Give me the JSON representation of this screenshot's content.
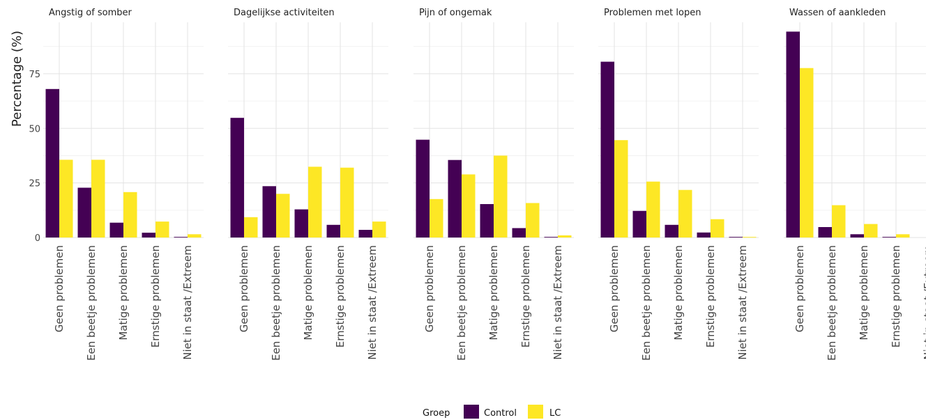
{
  "chart_data": {
    "type": "bar",
    "ylabel": "Percentage (%)",
    "ylim": [
      0,
      95
    ],
    "yticks": [
      "0",
      "25",
      "50",
      "75"
    ],
    "categories": [
      "Geen problemen",
      "Een beetje problemen",
      "Matige problemen",
      "Ernstige problemen",
      "Niet in staat /Extreem"
    ],
    "colors": {
      "Control": "#440154",
      "LC": "#fde725"
    },
    "grid": true,
    "legend": {
      "title": "Groep",
      "position": "bottom",
      "labels": [
        "Control",
        "LC"
      ]
    },
    "facets": [
      {
        "title": "Angstig of somber",
        "series": [
          {
            "name": "Control",
            "values": [
              68,
              22.8,
              6.8,
              2.2,
              0.3
            ]
          },
          {
            "name": "LC",
            "values": [
              35.6,
              35.6,
              20.8,
              7.3,
              1.5
            ]
          }
        ]
      },
      {
        "title": "Dagelijkse activiteiten",
        "series": [
          {
            "name": "Control",
            "values": [
              54.8,
              23.5,
              12.9,
              5.8,
              3.5
            ]
          },
          {
            "name": "LC",
            "values": [
              9.3,
              20,
              32.4,
              32,
              7.3
            ]
          }
        ]
      },
      {
        "title": "Pijn of ongemak",
        "series": [
          {
            "name": "Control",
            "values": [
              44.8,
              35.5,
              15.3,
              4.3,
              0.3
            ]
          },
          {
            "name": "LC",
            "values": [
              17.6,
              28.9,
              37.5,
              15.8,
              1
            ]
          }
        ]
      },
      {
        "title": "Problemen met lopen",
        "series": [
          {
            "name": "Control",
            "values": [
              80.5,
              12.2,
              5.8,
              2.3,
              0.3
            ]
          },
          {
            "name": "LC",
            "values": [
              44.6,
              25.6,
              21.8,
              8.4,
              0.3
            ]
          }
        ]
      },
      {
        "title": "Wassen of aankleden",
        "series": [
          {
            "name": "Control",
            "values": [
              94.3,
              4.8,
              1.5,
              0.3,
              0
            ]
          },
          {
            "name": "LC",
            "values": [
              77.6,
              14.8,
              6.2,
              1.5,
              0.3
            ]
          }
        ]
      }
    ]
  }
}
